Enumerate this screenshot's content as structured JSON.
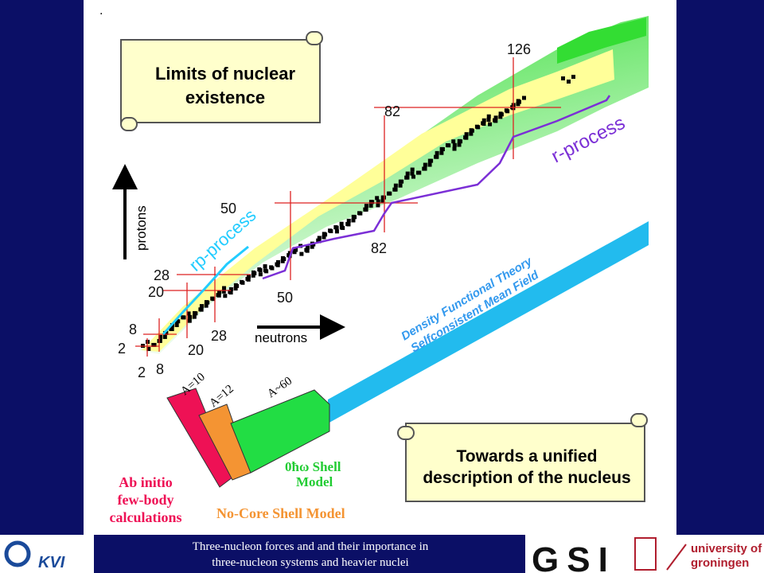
{
  "slide": {
    "dot": ".",
    "scroll_top": [
      "Limits of nuclear",
      "existence"
    ],
    "magic_numbers": {
      "n126": "126",
      "z82": "82",
      "n82": "82",
      "z50": "50",
      "n50": "50",
      "z28": "28",
      "n28": "28",
      "z20": "20",
      "n20": "20",
      "z8": "8",
      "n8": "8",
      "z2": "2",
      "n2": "2"
    },
    "r_process": "r-process",
    "rp_process": "rp-process",
    "protons": "protons",
    "neutrons": "neutrons",
    "dft": [
      "Density Functional Theory",
      "Selfconsistent Mean Field"
    ],
    "mass_labels": [
      "A=10",
      "A=12",
      "A~60"
    ],
    "shell_model": [
      "0ħω Shell",
      "Model"
    ],
    "ab_initio": [
      "Ab initio",
      "few-body",
      "calculations"
    ],
    "no_core": "No-Core Shell Model",
    "scroll_bottom": [
      "Towards a unified",
      "description of the nucleus"
    ]
  },
  "footer": {
    "text": [
      "Three-nucleon forces and and their importance in",
      "three-nucleon systems and heavier nuclei"
    ],
    "logo_kvi": "KVI",
    "logo_gsi": "GSI",
    "logo_groningen": [
      "university of",
      "groningen"
    ]
  }
}
